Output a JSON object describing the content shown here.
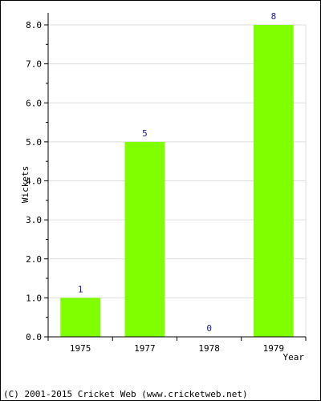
{
  "chart_data": {
    "type": "bar",
    "categories": [
      "1975",
      "1977",
      "1978",
      "1979"
    ],
    "values": [
      1,
      5,
      0,
      8
    ],
    "data_labels": [
      "1",
      "5",
      "0",
      "8"
    ],
    "title": "",
    "xlabel": "Year",
    "ylabel": "Wickets",
    "ylim": [
      0,
      8
    ],
    "yticks": [
      "0.0",
      "1.0",
      "2.0",
      "3.0",
      "4.0",
      "5.0",
      "6.0",
      "7.0",
      "8.0"
    ],
    "grid": true,
    "bar_color": "#80ff00",
    "label_color": "#1a1a8a"
  },
  "footer": "(C) 2001-2015 Cricket Web (www.cricketweb.net)"
}
